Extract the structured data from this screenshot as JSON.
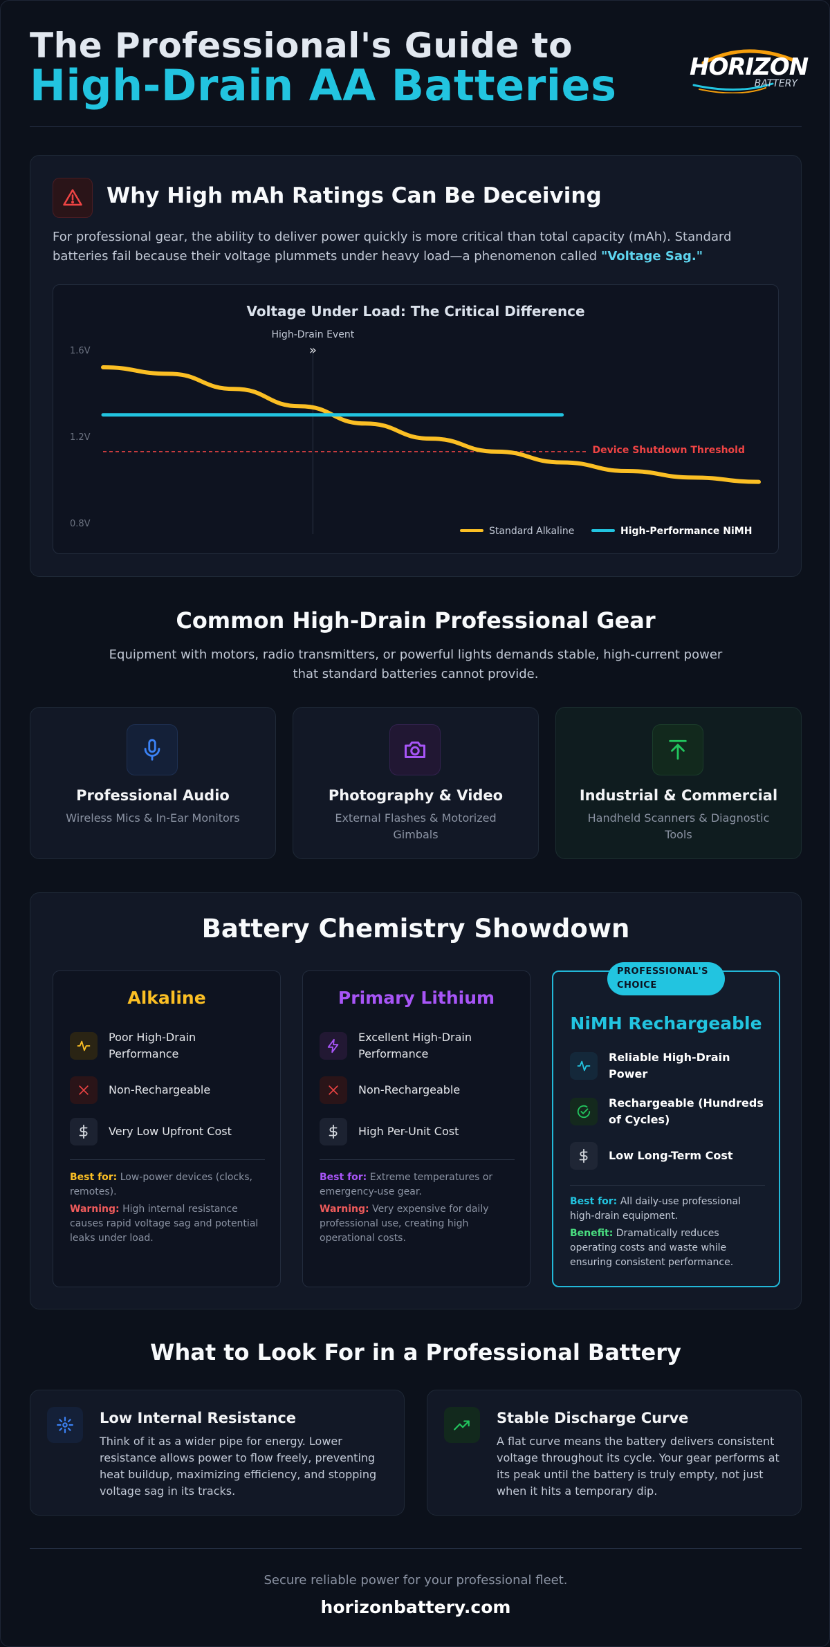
{
  "header": {
    "title_line1": "The Professional's Guide to",
    "title_line2": "High-Drain AA Batteries",
    "logo_word": "HORIZON",
    "logo_sub": "BATTERY",
    "colors": {
      "accent": "#22c4e0",
      "title": "#e2e8f0"
    }
  },
  "deceiving": {
    "icon": "warning-triangle-icon",
    "title": "Why High mAh Ratings Can Be Deceiving",
    "text": "For professional gear, the ability to deliver power quickly is more critical than total capacity (mAh). Standard batteries fail because their voltage plummets under heavy load—a phenomenon called ",
    "highlight": "\"Voltage Sag.\""
  },
  "chart_data": {
    "type": "line",
    "title": "Voltage Under Load: The Critical Difference",
    "xlabel": "",
    "ylabel": "",
    "y_ticks": [
      "1.6V",
      "1.2V",
      "0.8V"
    ],
    "ylim": [
      0.8,
      1.6
    ],
    "x": [
      0,
      1,
      2,
      3,
      4,
      5,
      6,
      7,
      8,
      9,
      10
    ],
    "series": [
      {
        "name": "Standard Alkaline",
        "color": "#fbbf24",
        "values": [
          1.52,
          1.49,
          1.42,
          1.34,
          1.26,
          1.19,
          1.13,
          1.08,
          1.04,
          1.01,
          0.99
        ]
      },
      {
        "name": "High-Performance NiMH",
        "color": "#22c4e0",
        "values": [
          1.3,
          1.3,
          1.3,
          1.3,
          1.3,
          1.3,
          1.3,
          1.3,
          null,
          null,
          null
        ]
      }
    ],
    "threshold": {
      "label": "Device Shutdown Threshold",
      "value": 1.13,
      "color": "#ef4444"
    },
    "event": {
      "label": "High-Drain Event",
      "marker": "»",
      "x": 3.2
    },
    "legend_position": "bottom-right",
    "grid": false
  },
  "gear": {
    "title": "Common High-Drain Professional Gear",
    "subtitle": "Equipment with motors, radio transmitters, or powerful lights demands stable, high-current power that standard batteries cannot provide.",
    "items": [
      {
        "icon": "microphone-icon",
        "name": "Professional Audio",
        "desc": "Wireless Mics & In-Ear Monitors",
        "color": "#3b82f6"
      },
      {
        "icon": "camera-icon",
        "name": "Photography & Video",
        "desc": "External Flashes & Motorized Gimbals",
        "color": "#a855f7"
      },
      {
        "icon": "upload-arrow-icon",
        "name": "Industrial & Commercial",
        "desc": "Handheld Scanners & Diagnostic Tools",
        "color": "#22c55e"
      }
    ]
  },
  "showdown": {
    "title": "Battery Chemistry Showdown",
    "alkaline": {
      "name": "Alkaline",
      "color": "#fbbf24",
      "features": [
        "Poor High-Drain Performance",
        "Non-Rechargeable",
        "Very Low Upfront Cost"
      ],
      "best_label": "Best for:",
      "best_text": " Low-power devices (clocks, remotes).",
      "warn_label": "Warning:",
      "warn_text": " High internal resistance causes rapid voltage sag and potential leaks under load."
    },
    "lithium": {
      "name": "Primary Lithium",
      "color": "#a855f7",
      "features": [
        "Excellent High-Drain Performance",
        "Non-Rechargeable",
        "High Per-Unit Cost"
      ],
      "best_label": "Best for:",
      "best_text": " Extreme temperatures or emergency-use gear.",
      "warn_label": "Warning:",
      "warn_text": " Very expensive for daily professional use, creating high operational costs."
    },
    "nimh": {
      "badge": "PROFESSIONAL'S CHOICE",
      "name": "NiMH Rechargeable",
      "color": "#22c4e0",
      "features": [
        "Reliable High-Drain Power",
        "Rechargeable (Hundreds of Cycles)",
        "Low Long-Term Cost"
      ],
      "best_label": "Best for:",
      "best_text": " All daily-use professional high-drain equipment.",
      "benefit_label": "Benefit:",
      "benefit_text": " Dramatically reduces operating costs and waste while ensuring consistent performance."
    }
  },
  "look": {
    "title": "What to Look For in a Professional Battery",
    "items": [
      {
        "icon": "sparkle-icon",
        "name": "Low Internal Resistance",
        "desc": "Think of it as a wider pipe for energy. Lower resistance allows power to flow freely, preventing heat buildup, maximizing efficiency, and stopping voltage sag in its tracks."
      },
      {
        "icon": "trending-up-icon",
        "name": "Stable Discharge Curve",
        "desc": "A flat curve means the battery delivers consistent voltage throughout its cycle. Your gear performs at its peak until the battery is truly empty, not just when it hits a temporary dip."
      }
    ]
  },
  "footer": {
    "tagline": "Secure reliable power for your professional fleet.",
    "url": "horizonbattery.com"
  }
}
